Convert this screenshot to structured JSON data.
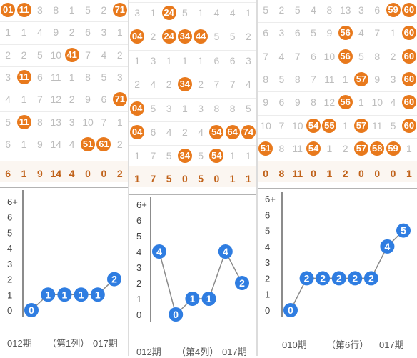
{
  "panels": [
    {
      "rows": [
        [
          "01",
          "11",
          "3",
          "8",
          "1",
          "5",
          "2",
          "71"
        ],
        [
          "1",
          "1",
          "4",
          "9",
          "2",
          "6",
          "3",
          "1"
        ],
        [
          "2",
          "2",
          "5",
          "10",
          "41",
          "7",
          "4",
          "2"
        ],
        [
          "3",
          "11",
          "6",
          "11",
          "1",
          "8",
          "5",
          "3"
        ],
        [
          "4",
          "1",
          "7",
          "12",
          "2",
          "9",
          "6",
          "71"
        ],
        [
          "5",
          "11",
          "8",
          "13",
          "3",
          "10",
          "7",
          "1"
        ],
        [
          "6",
          "1",
          "9",
          "14",
          "4",
          "51",
          "61",
          "2"
        ]
      ],
      "balls": [
        [
          0,
          0
        ],
        [
          0,
          1
        ],
        [
          0,
          7
        ],
        [
          2,
          4
        ],
        [
          3,
          1
        ],
        [
          4,
          7
        ],
        [
          5,
          1
        ],
        [
          6,
          5
        ],
        [
          6,
          6
        ]
      ],
      "summary": [
        "6",
        "1",
        "9",
        "14",
        "4",
        "0",
        "0",
        "2"
      ]
    },
    {
      "rows": [
        [
          "3",
          "1",
          "24",
          "5",
          "1",
          "4",
          "4",
          "1"
        ],
        [
          "04",
          "2",
          "24",
          "34",
          "44",
          "5",
          "5",
          "2"
        ],
        [
          "1",
          "3",
          "1",
          "1",
          "1",
          "6",
          "6",
          "3"
        ],
        [
          "2",
          "4",
          "2",
          "34",
          "2",
          "7",
          "7",
          "4"
        ],
        [
          "04",
          "5",
          "3",
          "1",
          "3",
          "8",
          "8",
          "5"
        ],
        [
          "04",
          "6",
          "4",
          "2",
          "4",
          "54",
          "64",
          "74"
        ],
        [
          "1",
          "7",
          "5",
          "34",
          "5",
          "54",
          "1",
          "1"
        ]
      ],
      "balls": [
        [
          0,
          2
        ],
        [
          1,
          0
        ],
        [
          1,
          2
        ],
        [
          1,
          3
        ],
        [
          1,
          4
        ],
        [
          3,
          3
        ],
        [
          4,
          0
        ],
        [
          5,
          0
        ],
        [
          5,
          5
        ],
        [
          5,
          6
        ],
        [
          5,
          7
        ],
        [
          6,
          3
        ],
        [
          6,
          5
        ]
      ],
      "summary": [
        "1",
        "7",
        "5",
        "0",
        "5",
        "0",
        "1",
        "1"
      ]
    },
    {
      "rows": [
        [
          "5",
          "2",
          "5",
          "4",
          "8",
          "13",
          "3",
          "6",
          "59",
          "60"
        ],
        [
          "6",
          "3",
          "6",
          "5",
          "9",
          "56",
          "4",
          "7",
          "1",
          "60"
        ],
        [
          "7",
          "4",
          "7",
          "6",
          "10",
          "56",
          "5",
          "8",
          "2",
          "60"
        ],
        [
          "8",
          "5",
          "8",
          "7",
          "11",
          "1",
          "57",
          "9",
          "3",
          "60"
        ],
        [
          "9",
          "6",
          "9",
          "8",
          "12",
          "56",
          "1",
          "10",
          "4",
          "60"
        ],
        [
          "10",
          "7",
          "10",
          "54",
          "55",
          "1",
          "57",
          "11",
          "5",
          "60"
        ],
        [
          "51",
          "8",
          "11",
          "54",
          "1",
          "2",
          "57",
          "58",
          "59",
          "1"
        ]
      ],
      "balls": [
        [
          0,
          8
        ],
        [
          0,
          9
        ],
        [
          1,
          5
        ],
        [
          1,
          9
        ],
        [
          2,
          5
        ],
        [
          2,
          9
        ],
        [
          3,
          6
        ],
        [
          3,
          9
        ],
        [
          4,
          5
        ],
        [
          4,
          9
        ],
        [
          5,
          3
        ],
        [
          5,
          4
        ],
        [
          5,
          6
        ],
        [
          5,
          9
        ],
        [
          6,
          0
        ],
        [
          6,
          3
        ],
        [
          6,
          6
        ],
        [
          6,
          7
        ],
        [
          6,
          8
        ]
      ],
      "summary": [
        "0",
        "8",
        "11",
        "0",
        "1",
        "2",
        "0",
        "0",
        "0",
        "1"
      ]
    }
  ],
  "chart_data": [
    {
      "type": "line",
      "ylabels": [
        "6+",
        "6",
        "5",
        "4",
        "3",
        "2",
        "1",
        "0"
      ],
      "ylim": [
        0,
        6
      ],
      "values": [
        0,
        1,
        1,
        1,
        1,
        2
      ],
      "footer": [
        "012期",
        "（第1列）",
        "017期"
      ]
    },
    {
      "type": "line",
      "ylabels": [
        "6+",
        "6",
        "5",
        "4",
        "3",
        "2",
        "1",
        "0"
      ],
      "ylim": [
        0,
        6
      ],
      "values": [
        4,
        0,
        1,
        1,
        4,
        2
      ],
      "footer": [
        "012期",
        "（第4列）",
        "017期"
      ]
    },
    {
      "type": "line",
      "ylabels": [
        "6+",
        "6",
        "5",
        "4",
        "3",
        "2",
        "1",
        "0"
      ],
      "ylim": [
        0,
        6
      ],
      "values": [
        0,
        2,
        2,
        2,
        2,
        2,
        4,
        5
      ],
      "footer": [
        "010期",
        "（第6行）",
        "017期"
      ]
    }
  ],
  "colors": {
    "ball": "#e8791c",
    "chart_node": "#2f7de1",
    "line": "#8a8a8a"
  }
}
